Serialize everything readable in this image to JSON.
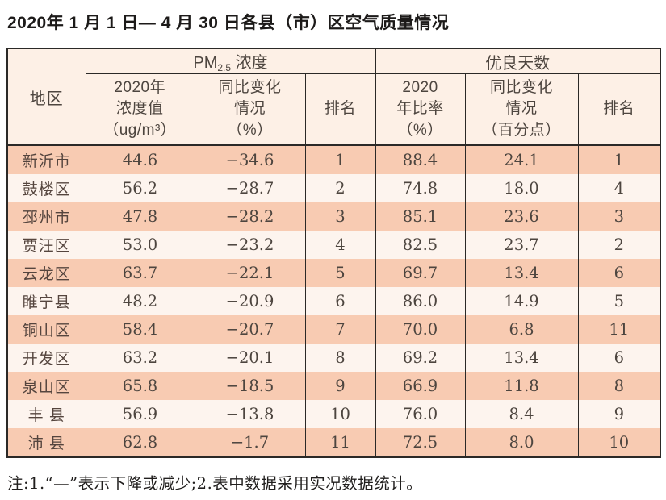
{
  "page": {
    "title": "2020年 1 月 1 日— 4 月 30 日各县（市）区空气质量情况",
    "note": "注:1.“—”表示下降或减少;2.表中数据采用实况数据统计。"
  },
  "table": {
    "header": {
      "region": "地区",
      "pm25": {
        "prefix": "PM",
        "sub": "2.5",
        "suffix": " 浓度"
      },
      "good_days": "优良天数",
      "subcols": [
        "2020年\n浓度值\n（ug/m³）",
        "同比变化\n情况\n（%）",
        "排名",
        "2020\n年比率\n（%）",
        "同比变化\n情况\n（百分点）",
        "排名"
      ]
    },
    "col_names": [
      "region",
      "pm-value",
      "pm-change",
      "pm-rank",
      "ratio-value",
      "ratio-change",
      "ratio-rank"
    ],
    "rows": [
      [
        "新沂市",
        "44.6",
        "−34.6",
        "1",
        "88.4",
        "24.1",
        "1"
      ],
      [
        "鼓楼区",
        "56.2",
        "−28.7",
        "2",
        "74.8",
        "18.0",
        "4"
      ],
      [
        "邳州市",
        "47.8",
        "−28.2",
        "3",
        "85.1",
        "23.6",
        "3"
      ],
      [
        "贾汪区",
        "53.0",
        "−23.2",
        "4",
        "82.5",
        "23.7",
        "2"
      ],
      [
        "云龙区",
        "63.7",
        "−22.1",
        "5",
        "69.7",
        "13.4",
        "6"
      ],
      [
        "睢宁县",
        "48.2",
        "−20.9",
        "6",
        "86.0",
        "14.9",
        "5"
      ],
      [
        "铜山区",
        "58.4",
        "−20.7",
        "7",
        "70.0",
        "6.8",
        "11"
      ],
      [
        "开发区",
        "63.2",
        "−20.1",
        "8",
        "69.2",
        "13.4",
        "6"
      ],
      [
        "泉山区",
        "65.8",
        "−18.5",
        "9",
        "66.9",
        "11.8",
        "8"
      ],
      [
        "丰 县",
        "56.9",
        "−13.8",
        "10",
        "76.0",
        "8.4",
        "9"
      ],
      [
        "沛 县",
        "62.8",
        "−1.7",
        "11",
        "72.5",
        "8.0",
        "10"
      ]
    ],
    "colors": {
      "band_odd": "#f8cbb2",
      "band_even": "#fdf4ee",
      "header_bg": "#fdf0e6",
      "border": "#2b2927"
    }
  }
}
